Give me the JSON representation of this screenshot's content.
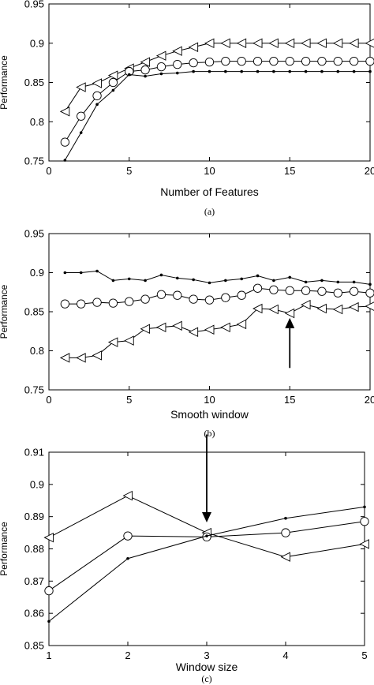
{
  "chart_data": [
    {
      "type": "line",
      "caption": "(a)",
      "xlabel": "Number of Features",
      "ylabel": "Performance",
      "xlim": [
        0,
        20
      ],
      "ylim": [
        0.75,
        0.95
      ],
      "xticks": [
        0,
        5,
        10,
        15,
        20
      ],
      "yticks": [
        0.75,
        0.8,
        0.85,
        0.9,
        0.95
      ],
      "grid": false,
      "x": [
        1,
        2,
        3,
        4,
        5,
        6,
        7,
        8,
        9,
        10,
        11,
        12,
        13,
        14,
        15,
        16,
        17,
        18,
        19,
        20
      ],
      "series": [
        {
          "marker": "triangle-left",
          "values": [
            0.813,
            0.844,
            0.849,
            0.859,
            0.868,
            0.876,
            0.884,
            0.89,
            0.895,
            0.9,
            0.9,
            0.9,
            0.9,
            0.9,
            0.9,
            0.9,
            0.9,
            0.9,
            0.9,
            0.9
          ]
        },
        {
          "marker": "circle",
          "values": [
            0.774,
            0.807,
            0.833,
            0.85,
            0.864,
            0.866,
            0.87,
            0.873,
            0.875,
            0.876,
            0.877,
            0.877,
            0.877,
            0.877,
            0.877,
            0.877,
            0.877,
            0.877,
            0.877,
            0.877
          ]
        },
        {
          "marker": "dot",
          "values": [
            0.751,
            0.786,
            0.822,
            0.84,
            0.86,
            0.858,
            0.861,
            0.862,
            0.864,
            0.864,
            0.864,
            0.864,
            0.864,
            0.864,
            0.864,
            0.864,
            0.864,
            0.864,
            0.864,
            0.864
          ]
        }
      ],
      "annotations": []
    },
    {
      "type": "line",
      "caption": "(b)",
      "xlabel": "Smooth window",
      "ylabel": "Performance",
      "xlim": [
        0,
        20
      ],
      "ylim": [
        0.75,
        0.95
      ],
      "xticks": [
        0,
        5,
        10,
        15,
        20
      ],
      "yticks": [
        0.75,
        0.8,
        0.85,
        0.9,
        0.95
      ],
      "grid": false,
      "x": [
        1,
        2,
        3,
        4,
        5,
        6,
        7,
        8,
        9,
        10,
        11,
        12,
        13,
        14,
        15,
        16,
        17,
        18,
        19,
        20
      ],
      "series": [
        {
          "marker": "dot",
          "values": [
            0.9,
            0.9,
            0.902,
            0.89,
            0.892,
            0.89,
            0.897,
            0.893,
            0.891,
            0.887,
            0.89,
            0.892,
            0.896,
            0.89,
            0.894,
            0.888,
            0.89,
            0.888,
            0.888,
            0.885
          ]
        },
        {
          "marker": "circle",
          "values": [
            0.86,
            0.86,
            0.862,
            0.861,
            0.863,
            0.866,
            0.872,
            0.871,
            0.866,
            0.865,
            0.868,
            0.871,
            0.88,
            0.878,
            0.877,
            0.877,
            0.876,
            0.874,
            0.876,
            0.874
          ]
        },
        {
          "marker": "triangle-left",
          "values": [
            0.791,
            0.791,
            0.794,
            0.811,
            0.813,
            0.828,
            0.83,
            0.832,
            0.824,
            0.827,
            0.83,
            0.834,
            0.854,
            0.853,
            0.848,
            0.859,
            0.854,
            0.853,
            0.856,
            0.857
          ]
        }
      ],
      "annotations": [
        {
          "type": "arrow",
          "direction": "up",
          "x": 15,
          "y_from": 0.778,
          "y_to": 0.842
        }
      ]
    },
    {
      "type": "line",
      "caption": "(c)",
      "xlabel": "Window size",
      "ylabel": "Performance",
      "xlim": [
        1,
        5
      ],
      "ylim": [
        0.85,
        0.91
      ],
      "xticks": [
        1,
        2,
        3,
        4,
        5
      ],
      "yticks": [
        0.85,
        0.86,
        0.87,
        0.88,
        0.89,
        0.9,
        0.91
      ],
      "grid": false,
      "x": [
        1,
        2,
        3,
        4,
        5
      ],
      "series": [
        {
          "marker": "triangle-left",
          "values": [
            0.8835,
            0.8965,
            0.885,
            0.8775,
            0.8815
          ]
        },
        {
          "marker": "circle",
          "values": [
            0.867,
            0.884,
            0.8837,
            0.885,
            0.8885
          ]
        },
        {
          "marker": "dot",
          "values": [
            0.8575,
            0.877,
            0.884,
            0.8895,
            0.893
          ]
        }
      ],
      "annotations": [
        {
          "type": "arrow",
          "direction": "down",
          "x": 3,
          "y_from": 0.9155,
          "y_to": 0.8882
        }
      ]
    }
  ]
}
